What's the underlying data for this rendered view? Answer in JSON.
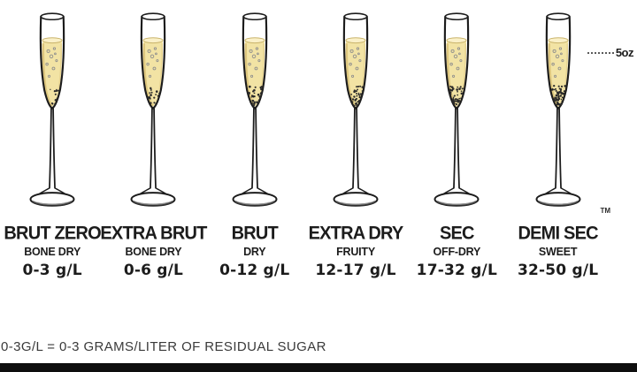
{
  "page": {
    "footer_note": "0-3G/L = 0-3 GRAMS/LITER OF RESIDUAL SUGAR",
    "volume_label": "5oz",
    "trademark": "TM"
  },
  "colors": {
    "champagne": "#f2e3a4",
    "champagne_surface": "#faf0c8",
    "outline": "#1c1c1c"
  },
  "glasses": [
    {
      "name": "BRUT ZERO",
      "descriptor": "BONE DRY",
      "sugar": "0-3 g/L",
      "sugar_dots": 12
    },
    {
      "name": "EXTRA BRUT",
      "descriptor": "BONE DRY",
      "sugar": "0-6 g/L",
      "sugar_dots": 18
    },
    {
      "name": "BRUT",
      "descriptor": "DRY",
      "sugar": "0-12 g/L",
      "sugar_dots": 30
    },
    {
      "name": "EXTRA DRY",
      "descriptor": "FRUITY",
      "sugar": "12-17 g/L",
      "sugar_dots": 40
    },
    {
      "name": "SEC",
      "descriptor": "OFF-DRY",
      "sugar": "17-32 g/L",
      "sugar_dots": 50
    },
    {
      "name": "DEMI SEC",
      "descriptor": "SWEET",
      "sugar": "32-50 g/L",
      "sugar_dots": 60
    }
  ]
}
